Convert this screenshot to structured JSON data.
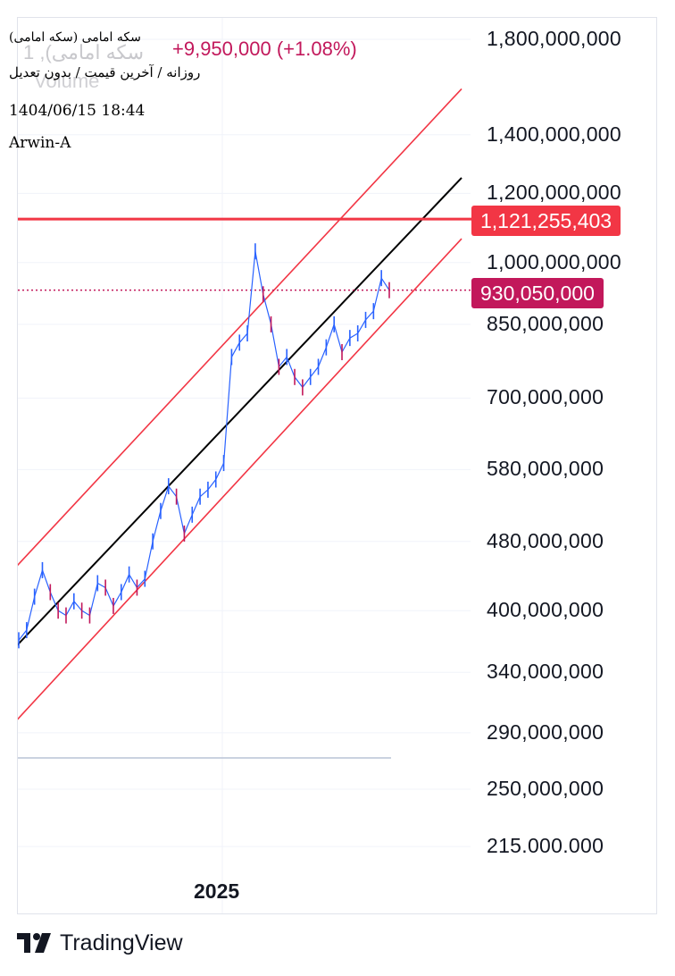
{
  "legend": {
    "symbol": "(سکه امامی (سکه امامی",
    "change": "+9,950,000 (+1.08%)",
    "ghost_title": "1 ,(سکه امامی",
    "volume": "Volume",
    "settings": "روزانه / آخرین قیمت / بدون تعدیل",
    "datetime": "1404/06/15 18:44",
    "author": "Arwin-A"
  },
  "brand": {
    "name": "TradingView",
    "icon": "tradingview-logo-icon"
  },
  "colors": {
    "channel": "#f23645",
    "midline": "#000000",
    "resistance": "#f23645",
    "last_price": "#c2185b",
    "up_candle": "#2962ff",
    "down_candle": "#c2185b"
  },
  "chart_data": {
    "type": "line",
    "scale": "log",
    "x_tick_labels": [
      "2025"
    ],
    "y_tick_labels": [
      "1,800,000,000",
      "1,400,000,000",
      "1,200,000,000",
      "1,000,000,000",
      "850,000,000",
      "700,000,000",
      "580,000,000",
      "480,000,000",
      "400,000,000",
      "340,000,000",
      "290,000,000",
      "250,000,000",
      "215.000.000"
    ],
    "y_ticks": [
      1800000000,
      1400000000,
      1200000000,
      1000000000,
      850000000,
      700000000,
      580000000,
      480000000,
      400000000,
      340000000,
      290000000,
      250000000,
      215000000
    ],
    "ylim": [
      200000000,
      1900000000
    ],
    "price_labels": {
      "resistance": "1,121,255,403",
      "last": "930,050,000"
    },
    "resistance_level": 1121255403,
    "last_price": 930050000,
    "series": [
      {
        "values": [
          370000000,
          380000000,
          415000000,
          445000000,
          420000000,
          400000000,
          395000000,
          410000000,
          400000000,
          395000000,
          430000000,
          425000000,
          405000000,
          420000000,
          440000000,
          425000000,
          435000000,
          480000000,
          520000000,
          555000000,
          540000000,
          490000000,
          515000000,
          540000000,
          550000000,
          565000000,
          590000000,
          780000000,
          810000000,
          830000000,
          1030000000,
          920000000,
          850000000,
          760000000,
          780000000,
          740000000,
          720000000,
          740000000,
          760000000,
          800000000,
          850000000,
          790000000,
          820000000,
          830000000,
          860000000,
          880000000,
          960000000,
          930000000
        ]
      }
    ],
    "channel": {
      "upper": {
        "start": 450000000,
        "end": 1580000000
      },
      "middle": {
        "start": 365000000,
        "end": 1250000000
      },
      "lower": {
        "start": 300000000,
        "end": 1065000000
      }
    }
  }
}
